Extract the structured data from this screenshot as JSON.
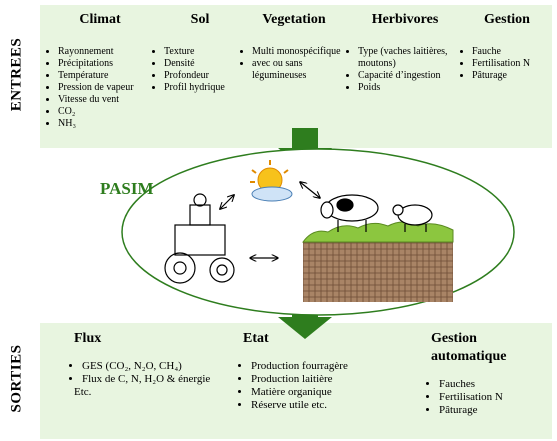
{
  "entrees": {
    "label": "ENTREES",
    "columns": [
      {
        "title": "Climat",
        "items": [
          "Rayonnement",
          "Précipitations",
          "Température",
          "Pression de vapeur",
          "Vitesse du vent",
          "CO₂",
          "NH₃"
        ]
      },
      {
        "title": "Sol",
        "items": [
          "Texture",
          "Densité",
          "Profondeur",
          "Profil hydrique"
        ]
      },
      {
        "title": "Vegetation",
        "items": [
          "Multi monospécifique",
          "avec ou sans légumineuses"
        ]
      },
      {
        "title": "Herbivores",
        "items": [
          "Type (vaches laitières, moutons)",
          "Capacité d’ingestion",
          "Poids"
        ]
      },
      {
        "title": "Gestion",
        "items": [
          "Fauche",
          "Fertilisation N",
          "Pâturage"
        ]
      }
    ]
  },
  "model": {
    "label": "PASIM"
  },
  "sorties": {
    "label": "SORTIES",
    "columns": [
      {
        "title": "Flux",
        "items": [
          "GES (CO₂, N₂O, CH₄)",
          "Flux de C, N, H₂O  & énergie"
        ],
        "note": "Etc."
      },
      {
        "title": "Etat",
        "items": [
          "Production fourragère",
          "Production laitière",
          "Matière organique",
          "Réserve utile etc."
        ]
      },
      {
        "title": "Gestion automatique",
        "items": [
          "Fauches",
          "Fertilisation N",
          "Pâturage"
        ]
      }
    ]
  }
}
